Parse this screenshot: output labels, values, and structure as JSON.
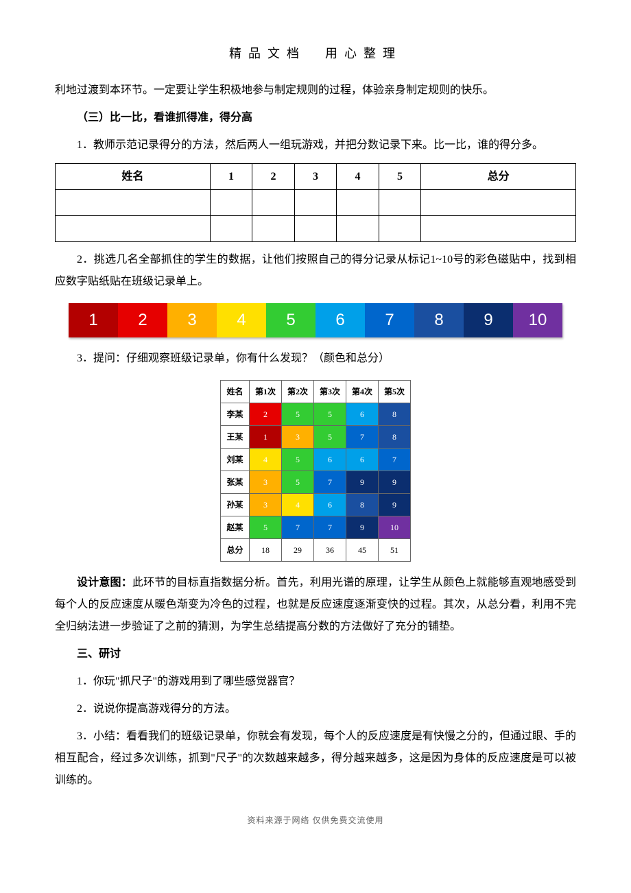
{
  "header": "精品文档　用心整理",
  "paragraphs": {
    "p1": "利地过渡到本环节。一定要让学生积极地参与制定规则的过程，体验亲身制定规则的快乐。",
    "h3": "（三）比一比，看谁抓得准，得分高",
    "p2": "1．教师示范记录得分的方法，然后两人一组玩游戏，并把分数记录下来。比一比，谁的得分多。",
    "p3": "2．挑选几名全部抓住的学生的数据，让他们按照自己的得分记录从标记1~10号的彩色磁贴中，找到相应数字贴纸贴在班级记录单上。",
    "p4": "3．提问：仔细观察班级记录单，你有什么发现？（颜色和总分）",
    "p5a": "设计意图：",
    "p5b": "此环节的目标直指数据分析。首先，利用光谱的原理，让学生从颜色上就能够直观地感受到每个人的反应速度从暖色渐变为冷色的过程，也就是反应速度逐渐变快的过程。其次，从总分看，利用不完全归纳法进一步验证了之前的猜测，为学生总结提高分数的方法做好了充分的铺垫。",
    "h4": "三、研讨",
    "p6": "1．你玩\"抓尺子\"的游戏用到了哪些感觉器官？",
    "p7": "2．说说你提高游戏得分的方法。",
    "p8": "3．小结：看看我们的班级记录单，你就会有发现，每个人的反应速度是有快慢之分的，但通过眼、手的相互配合，经过多次训练，抓到\"尺子\"的次数越来越多，得分越来越多，这是因为身体的反应速度是可以被训练的。"
  },
  "score_table": {
    "headers": [
      "姓名",
      "1",
      "2",
      "3",
      "4",
      "5",
      "总分"
    ]
  },
  "color_strip": {
    "cells": [
      {
        "label": "1",
        "bg": "#b30000",
        "fg": "#ffffff"
      },
      {
        "label": "2",
        "bg": "#e60000",
        "fg": "#ffffff"
      },
      {
        "label": "3",
        "bg": "#ffb000",
        "fg": "#ffffff"
      },
      {
        "label": "4",
        "bg": "#ffe000",
        "fg": "#ffffff"
      },
      {
        "label": "5",
        "bg": "#33cc33",
        "fg": "#ffffff"
      },
      {
        "label": "6",
        "bg": "#00a0e9",
        "fg": "#ffffff"
      },
      {
        "label": "7",
        "bg": "#0066cc",
        "fg": "#ffffff"
      },
      {
        "label": "8",
        "bg": "#1a4fa0",
        "fg": "#ffffff"
      },
      {
        "label": "9",
        "bg": "#0b2e6f",
        "fg": "#ffffff"
      },
      {
        "label": "10",
        "bg": "#7030a0",
        "fg": "#ffffff"
      }
    ]
  },
  "data_table": {
    "headers": [
      "姓名",
      "第1次",
      "第2次",
      "第3次",
      "第4次",
      "第5次"
    ],
    "rows": [
      {
        "name": "李某",
        "cells": [
          {
            "v": "2",
            "bg": "#e60000",
            "fg": "#ffffff"
          },
          {
            "v": "5",
            "bg": "#33cc33",
            "fg": "#ffffff"
          },
          {
            "v": "5",
            "bg": "#33cc33",
            "fg": "#ffffff"
          },
          {
            "v": "6",
            "bg": "#00a0e9",
            "fg": "#ffffff"
          },
          {
            "v": "8",
            "bg": "#1a4fa0",
            "fg": "#ffffff"
          }
        ]
      },
      {
        "name": "王某",
        "cells": [
          {
            "v": "1",
            "bg": "#b30000",
            "fg": "#ffffff"
          },
          {
            "v": "3",
            "bg": "#ffb000",
            "fg": "#ffffff"
          },
          {
            "v": "5",
            "bg": "#33cc33",
            "fg": "#ffffff"
          },
          {
            "v": "7",
            "bg": "#0066cc",
            "fg": "#ffffff"
          },
          {
            "v": "8",
            "bg": "#1a4fa0",
            "fg": "#ffffff"
          }
        ]
      },
      {
        "name": "刘某",
        "cells": [
          {
            "v": "4",
            "bg": "#ffe000",
            "fg": "#ffffff"
          },
          {
            "v": "5",
            "bg": "#33cc33",
            "fg": "#ffffff"
          },
          {
            "v": "6",
            "bg": "#00a0e9",
            "fg": "#ffffff"
          },
          {
            "v": "6",
            "bg": "#00a0e9",
            "fg": "#ffffff"
          },
          {
            "v": "7",
            "bg": "#0066cc",
            "fg": "#ffffff"
          }
        ]
      },
      {
        "name": "张某",
        "cells": [
          {
            "v": "3",
            "bg": "#ffb000",
            "fg": "#ffffff"
          },
          {
            "v": "5",
            "bg": "#33cc33",
            "fg": "#ffffff"
          },
          {
            "v": "7",
            "bg": "#0066cc",
            "fg": "#ffffff"
          },
          {
            "v": "9",
            "bg": "#0b2e6f",
            "fg": "#ffffff"
          },
          {
            "v": "9",
            "bg": "#0b2e6f",
            "fg": "#ffffff"
          }
        ]
      },
      {
        "name": "孙某",
        "cells": [
          {
            "v": "3",
            "bg": "#ffb000",
            "fg": "#ffffff"
          },
          {
            "v": "4",
            "bg": "#ffe000",
            "fg": "#ffffff"
          },
          {
            "v": "6",
            "bg": "#00a0e9",
            "fg": "#ffffff"
          },
          {
            "v": "8",
            "bg": "#1a4fa0",
            "fg": "#ffffff"
          },
          {
            "v": "9",
            "bg": "#0b2e6f",
            "fg": "#ffffff"
          }
        ]
      },
      {
        "name": "赵某",
        "cells": [
          {
            "v": "5",
            "bg": "#33cc33",
            "fg": "#ffffff"
          },
          {
            "v": "7",
            "bg": "#0066cc",
            "fg": "#ffffff"
          },
          {
            "v": "7",
            "bg": "#0066cc",
            "fg": "#ffffff"
          },
          {
            "v": "9",
            "bg": "#0b2e6f",
            "fg": "#ffffff"
          },
          {
            "v": "10",
            "bg": "#7030a0",
            "fg": "#ffffff"
          }
        ]
      }
    ],
    "totals": {
      "name": "总分",
      "values": [
        "18",
        "29",
        "36",
        "45",
        "51"
      ]
    }
  },
  "footer": "资料来源于网络 仅供免费交流使用"
}
